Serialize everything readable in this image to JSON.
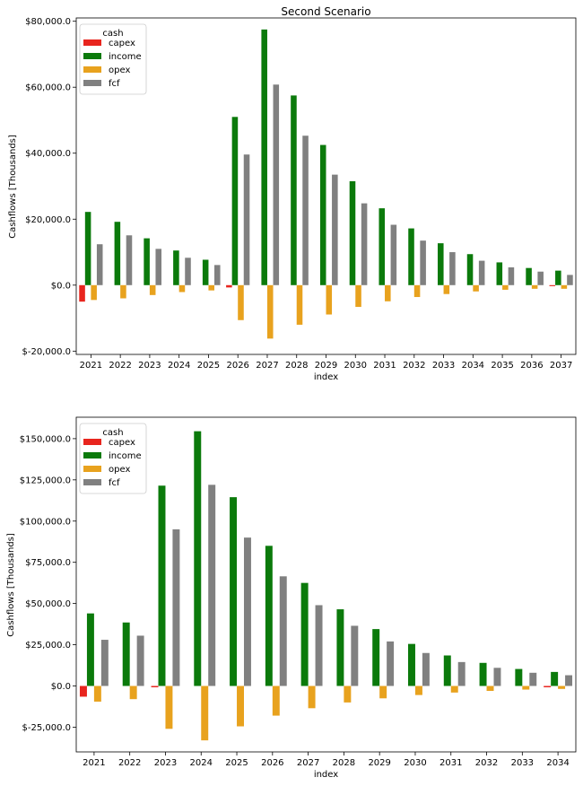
{
  "chart_data": [
    {
      "type": "bar",
      "title": "Second Scenario",
      "xlabel": "index",
      "ylabel": "Cashflows [Thousands]",
      "ylim": [
        -21000,
        81000
      ],
      "yticks": [
        -20000,
        0,
        20000,
        40000,
        60000,
        80000
      ],
      "ytick_labels": [
        "$-20,000.0",
        "$0.0",
        "$20,000.0",
        "$40,000.0",
        "$60,000.0",
        "$80,000.0"
      ],
      "categories": [
        "2021",
        "2022",
        "2023",
        "2024",
        "2025",
        "2026",
        "2027",
        "2028",
        "2029",
        "2030",
        "2031",
        "2032",
        "2033",
        "2034",
        "2035",
        "2036",
        "2037"
      ],
      "legend": {
        "title": "cash",
        "position": "top-left"
      },
      "series": [
        {
          "name": "capex",
          "color": "#e8251e",
          "values": [
            -5000,
            0,
            0,
            0,
            0,
            -700,
            0,
            0,
            0,
            0,
            0,
            0,
            0,
            0,
            0,
            0,
            -300
          ]
        },
        {
          "name": "income",
          "color": "#0b7a0b",
          "values": [
            22200,
            19200,
            14200,
            10500,
            7700,
            51000,
            77500,
            57500,
            42500,
            31500,
            23300,
            17200,
            12700,
            9400,
            6900,
            5200,
            4400
          ]
        },
        {
          "name": "opex",
          "color": "#e8a21e",
          "values": [
            -4500,
            -4000,
            -3000,
            -2100,
            -1600,
            -10600,
            -16200,
            -12000,
            -8900,
            -6600,
            -4900,
            -3600,
            -2700,
            -1900,
            -1400,
            -1100,
            -1100
          ]
        },
        {
          "name": "fcf",
          "color": "#808080",
          "values": [
            12400,
            15100,
            11000,
            8300,
            6100,
            39600,
            60800,
            45300,
            33500,
            24800,
            18300,
            13500,
            10000,
            7400,
            5400,
            4100,
            3100
          ]
        }
      ]
    },
    {
      "type": "bar",
      "title": "",
      "xlabel": "index",
      "ylabel": "Cashflows [Thousands]",
      "ylim": [
        -40000,
        163000
      ],
      "yticks": [
        -25000,
        0,
        25000,
        50000,
        75000,
        100000,
        125000,
        150000
      ],
      "ytick_labels": [
        "$-25,000.0",
        "$0.0",
        "$25,000.0",
        "$50,000.0",
        "$75,000.0",
        "$100,000.0",
        "$125,000.0",
        "$150,000.0"
      ],
      "categories": [
        "2021",
        "2022",
        "2023",
        "2024",
        "2025",
        "2026",
        "2027",
        "2028",
        "2029",
        "2030",
        "2031",
        "2032",
        "2033",
        "2034"
      ],
      "legend": {
        "title": "cash",
        "position": "top-left"
      },
      "series": [
        {
          "name": "capex",
          "color": "#e8251e",
          "values": [
            -6500,
            0,
            -800,
            0,
            0,
            0,
            0,
            0,
            0,
            0,
            0,
            0,
            0,
            -800
          ]
        },
        {
          "name": "income",
          "color": "#0b7a0b",
          "values": [
            44000,
            38500,
            121500,
            154500,
            114500,
            85000,
            62500,
            46500,
            34500,
            25500,
            18500,
            14000,
            10300,
            8500
          ]
        },
        {
          "name": "opex",
          "color": "#e8a21e",
          "values": [
            -9500,
            -8000,
            -26000,
            -33000,
            -24500,
            -18000,
            -13500,
            -10000,
            -7500,
            -5500,
            -4000,
            -3000,
            -2200,
            -1800
          ]
        },
        {
          "name": "fcf",
          "color": "#808080",
          "values": [
            28000,
            30500,
            95000,
            122000,
            90000,
            66500,
            49000,
            36500,
            27000,
            20000,
            14500,
            11000,
            8000,
            6500
          ]
        }
      ]
    }
  ]
}
